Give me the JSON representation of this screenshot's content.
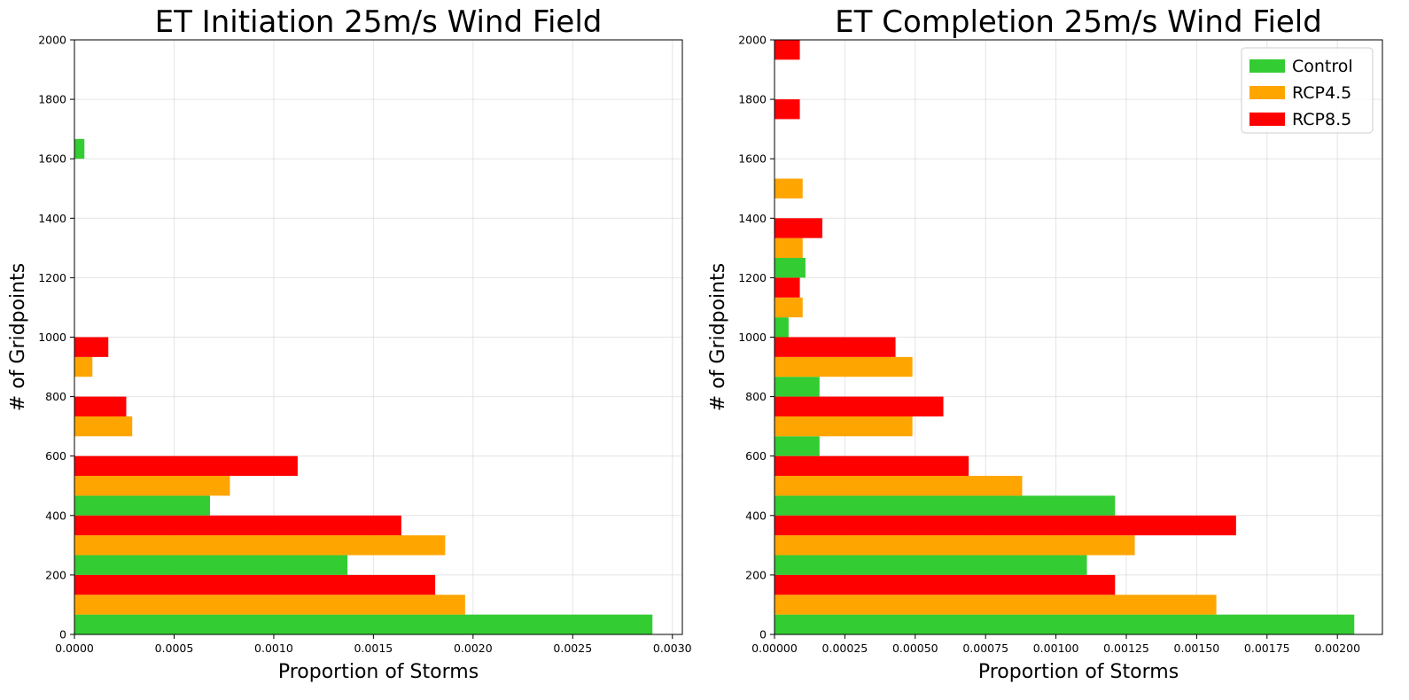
{
  "colors": {
    "Control": "#33cc33",
    "RCP4.5": "#ffa500",
    "RCP8.5": "#ff0000"
  },
  "chart_data": [
    {
      "type": "bar",
      "orientation": "horizontal",
      "title": "ET Initiation 25m/s Wind Field",
      "xlabel": "Proportion of Storms",
      "ylabel": "# of Gridpoints",
      "xlim": [
        0,
        0.00305
      ],
      "ylim": [
        0,
        2000
      ],
      "bin_width": 200,
      "x_ticks": [
        "0.0000",
        "0.0005",
        "0.0010",
        "0.0015",
        "0.0020",
        "0.0025",
        "0.0030"
      ],
      "y_ticks": [
        "0",
        "200",
        "400",
        "600",
        "800",
        "1000",
        "1200",
        "1400",
        "1600",
        "1800",
        "2000"
      ],
      "grid": true,
      "legend": false,
      "categories": [
        0,
        200,
        400,
        600,
        800,
        1000,
        1200,
        1400,
        1600,
        1800
      ],
      "series": [
        {
          "name": "Control",
          "values": [
            0.0029,
            0.00137,
            0.00068,
            0,
            0,
            0,
            0,
            0,
            5e-05,
            0
          ]
        },
        {
          "name": "RCP4.5",
          "values": [
            0.00196,
            0.00186,
            0.00078,
            0.00029,
            9e-05,
            0,
            0,
            0,
            0,
            0
          ]
        },
        {
          "name": "RCP8.5",
          "values": [
            0.00181,
            0.00164,
            0.00112,
            0.00026,
            0.00017,
            0,
            0,
            0,
            0,
            0
          ]
        }
      ]
    },
    {
      "type": "bar",
      "orientation": "horizontal",
      "title": "ET Completion 25m/s Wind Field",
      "xlabel": "Proportion of Storms",
      "ylabel": "# of Gridpoints",
      "xlim": [
        0,
        0.00216
      ],
      "ylim": [
        0,
        2000
      ],
      "bin_width": 200,
      "x_ticks": [
        "0.00000",
        "0.00025",
        "0.00050",
        "0.00075",
        "0.00100",
        "0.00125",
        "0.00150",
        "0.00175",
        "0.00200"
      ],
      "y_ticks": [
        "0",
        "200",
        "400",
        "600",
        "800",
        "1000",
        "1200",
        "1400",
        "1600",
        "1800",
        "2000"
      ],
      "grid": true,
      "legend": "top-right",
      "categories": [
        0,
        200,
        400,
        600,
        800,
        1000,
        1200,
        1400,
        1600,
        1800
      ],
      "series": [
        {
          "name": "Control",
          "values": [
            0.00206,
            0.00111,
            0.00121,
            0.00016,
            0.00016,
            5e-05,
            0.00011,
            0,
            0,
            0
          ]
        },
        {
          "name": "RCP4.5",
          "values": [
            0.00157,
            0.00128,
            0.00088,
            0.00049,
            0.00049,
            0.0001,
            0.0001,
            0.0001,
            0,
            0
          ]
        },
        {
          "name": "RCP8.5",
          "values": [
            0.00121,
            0.00164,
            0.00069,
            0.0006,
            0.00043,
            9e-05,
            0.00017,
            0,
            9e-05,
            9e-05
          ]
        }
      ]
    }
  ]
}
